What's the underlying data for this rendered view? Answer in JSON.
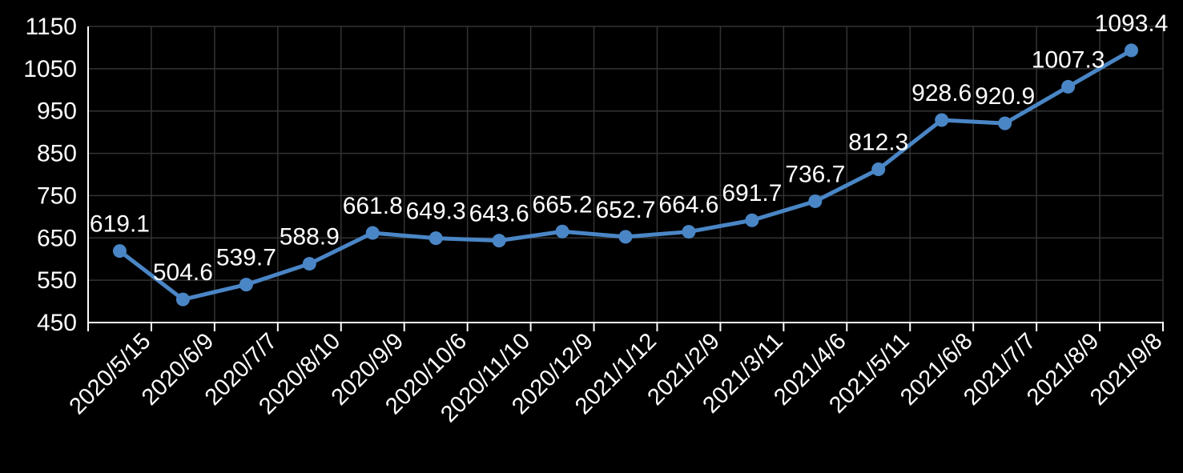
{
  "chart": {
    "background_color": "#000000",
    "text_color": "#ffffff",
    "gridline_color": "#333333",
    "axis_color": "#ffffff",
    "series_color": "#4a86c6",
    "tick_font_size": 30,
    "data_label_font_size": 30,
    "x_label_font_size": 29
  },
  "chart_data": {
    "type": "line",
    "title": "",
    "xlabel": "",
    "ylabel": "",
    "categories": [
      "2020/5/15",
      "2020/6/9",
      "2020/7/7",
      "2020/8/10",
      "2020/9/9",
      "2020/10/6",
      "2020/11/10",
      "2020/12/9",
      "2021/1/12",
      "2021/2/9",
      "2021/3/11",
      "2021/4/6",
      "2021/5/11",
      "2021/6/8",
      "2021/7/7",
      "2021/8/9",
      "2021/9/8"
    ],
    "series": [
      {
        "name": "",
        "values": [
          619.1,
          504.6,
          539.7,
          588.9,
          661.8,
          649.3,
          643.6,
          665.2,
          652.7,
          664.6,
          691.7,
          736.7,
          812.3,
          928.6,
          920.9,
          1007.3,
          1093.4
        ]
      }
    ],
    "data_labels": [
      619.1,
      504.6,
      539.7,
      588.9,
      661.8,
      649.3,
      643.6,
      665.2,
      652.7,
      664.6,
      691.7,
      736.7,
      812.3,
      928.6,
      920.9,
      1007.3,
      1093.4
    ],
    "ylim": [
      450,
      1150
    ],
    "ytick_step": 100,
    "yticks": [
      450,
      550,
      650,
      750,
      850,
      950,
      1050,
      1150
    ],
    "grid": true,
    "legend_position": "none",
    "marker": "circle",
    "x_label_rotation": -45,
    "data_labels_shown": true
  }
}
